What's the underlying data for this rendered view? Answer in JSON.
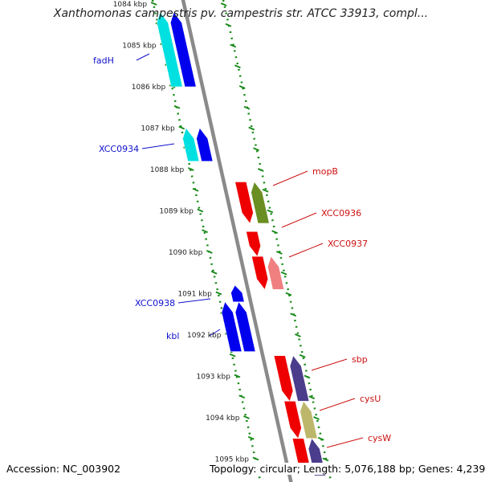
{
  "title": "Xanthomonas campestris pv. campestris str. ATCC 33913, compl...",
  "footer": {
    "accession": "Accession: NC_003902",
    "summary": "Topology: circular; Length: 5,076,188 bp; Genes: 4,239"
  },
  "colors": {
    "backbone": "#8a8a8a",
    "ticks": "#1a8a1a",
    "label_blue": "#1010cc",
    "label_red": "#cc1111"
  },
  "ruler": {
    "unit": "kbp",
    "first": 1084,
    "last": 1095,
    "labels": [
      "1084 kbp",
      "1085 kbp",
      "1086 kbp",
      "1087 kbp",
      "1088 kbp",
      "1089 kbp",
      "1090 kbp",
      "1091 kbp",
      "1092 kbp",
      "1093 kbp",
      "1094 kbp",
      "1095 kbp"
    ]
  },
  "genes": [
    {
      "label": "fadH",
      "strand": "left",
      "start": 1084.2,
      "end": 1086.0,
      "icon": "forward-arrow",
      "color": "#0000ee",
      "partner": "#00e0e0"
    },
    {
      "label": "XCC0934",
      "strand": "left",
      "start": 1087.0,
      "end": 1087.8,
      "icon": "forward-arrow",
      "color": "#0000ee",
      "partner": "#00e0e0"
    },
    {
      "label": "mopB",
      "strand": "right",
      "start": 1088.3,
      "end": 1089.3,
      "icon": "reverse-arrow",
      "color": "#ee0000",
      "partner": "#6a8e22"
    },
    {
      "label": "XCC0936",
      "strand": "right",
      "start": 1089.5,
      "end": 1090.1,
      "icon": "reverse-arrow",
      "color": "#ee0000",
      "partner": null
    },
    {
      "label": "XCC0937",
      "strand": "right",
      "start": 1090.1,
      "end": 1090.9,
      "icon": "reverse-arrow",
      "color": "#ee0000",
      "partner": "#f08080"
    },
    {
      "label": "XCC0938",
      "strand": "left",
      "start": 1090.8,
      "end": 1091.2,
      "icon": "forward-arrow",
      "color": "#0000ee",
      "partner": null
    },
    {
      "label": "kbl",
      "strand": "left",
      "start": 1091.2,
      "end": 1092.4,
      "icon": "forward-arrow",
      "color": "#0000ee",
      "partner": "#0000ee"
    },
    {
      "label": "sbp",
      "strand": "right",
      "start": 1092.5,
      "end": 1093.6,
      "icon": "reverse-arrow",
      "color": "#ee0000",
      "partner": "#4b3d8c"
    },
    {
      "label": "cysU",
      "strand": "right",
      "start": 1093.6,
      "end": 1094.5,
      "icon": "reverse-arrow",
      "color": "#ee0000",
      "partner": "#bdb76b"
    },
    {
      "label": "cysW",
      "strand": "right",
      "start": 1094.5,
      "end": 1095.4,
      "icon": "reverse-arrow",
      "color": "#ee0000",
      "partner": "#4b3d8c"
    }
  ]
}
